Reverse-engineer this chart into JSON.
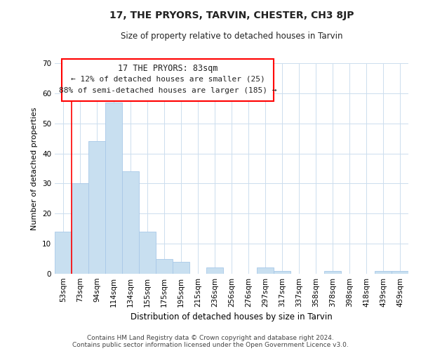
{
  "title": "17, THE PRYORS, TARVIN, CHESTER, CH3 8JP",
  "subtitle": "Size of property relative to detached houses in Tarvin",
  "xlabel": "Distribution of detached houses by size in Tarvin",
  "ylabel": "Number of detached properties",
  "bar_color": "#c8dff0",
  "bar_edge_color": "#a8c8e8",
  "categories": [
    "53sqm",
    "73sqm",
    "94sqm",
    "114sqm",
    "134sqm",
    "155sqm",
    "175sqm",
    "195sqm",
    "215sqm",
    "236sqm",
    "256sqm",
    "276sqm",
    "297sqm",
    "317sqm",
    "337sqm",
    "358sqm",
    "378sqm",
    "398sqm",
    "418sqm",
    "439sqm",
    "459sqm"
  ],
  "values": [
    14,
    30,
    44,
    57,
    34,
    14,
    5,
    4,
    0,
    2,
    0,
    0,
    2,
    1,
    0,
    0,
    1,
    0,
    0,
    1,
    1
  ],
  "ylim": [
    0,
    70
  ],
  "yticks": [
    0,
    10,
    20,
    30,
    40,
    50,
    60,
    70
  ],
  "red_line_x": 1.0,
  "annotation_title": "17 THE PRYORS: 83sqm",
  "annotation_line1": "← 12% of detached houses are smaller (25)",
  "annotation_line2": "88% of semi-detached houses are larger (185) →",
  "footer1": "Contains HM Land Registry data © Crown copyright and database right 2024.",
  "footer2": "Contains public sector information licensed under the Open Government Licence v3.0.",
  "background_color": "#ffffff",
  "grid_color": "#ccddee"
}
